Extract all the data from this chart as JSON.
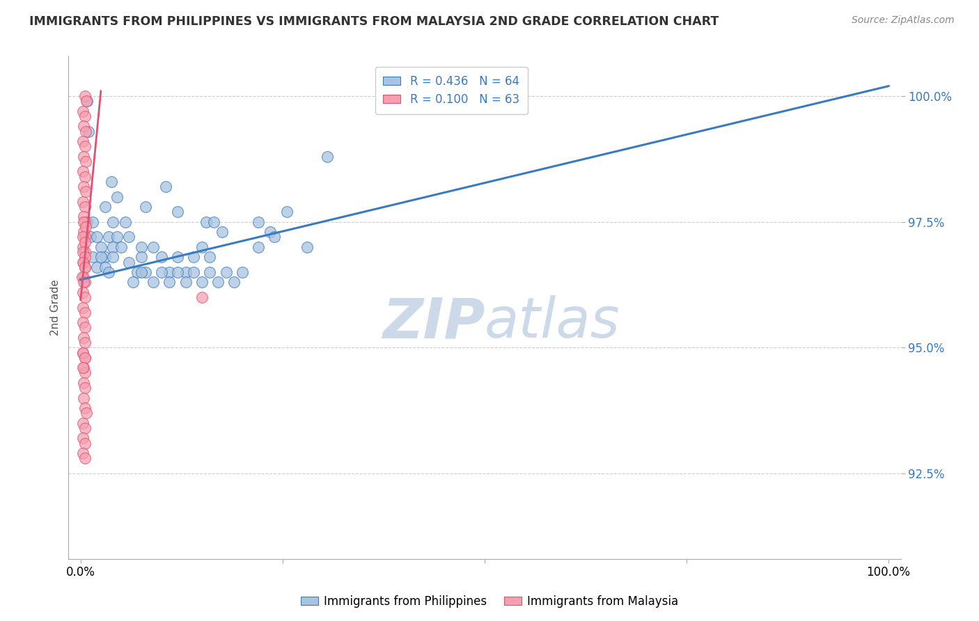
{
  "title": "IMMIGRANTS FROM PHILIPPINES VS IMMIGRANTS FROM MALAYSIA 2ND GRADE CORRELATION CHART",
  "source_text": "Source: ZipAtlas.com",
  "ylabel": "2nd Grade",
  "r_blue": 0.436,
  "n_blue": 64,
  "r_pink": 0.1,
  "n_pink": 63,
  "blue_color": "#a8c4e0",
  "pink_color": "#f4a0b0",
  "blue_line_color": "#3a7abf",
  "pink_line_color": "#e05070",
  "legend_text_color": "#3a7abf",
  "title_color": "#333333",
  "watermark_color": "#ccd9e8",
  "grid_color": "#cccccc",
  "xlim": [
    -0.015,
    1.015
  ],
  "ylim": [
    0.908,
    1.008
  ],
  "x_ticks": [
    0.0,
    0.25,
    0.5,
    0.75,
    1.0
  ],
  "x_tick_labels": [
    "0.0%",
    "",
    "",
    "",
    "100.0%"
  ],
  "y_ticks": [
    0.925,
    0.95,
    0.975,
    1.0
  ],
  "y_tick_labels": [
    "92.5%",
    "95.0%",
    "97.5%",
    "100.0%"
  ],
  "blue_trend_x": [
    0.0,
    1.0
  ],
  "blue_trend_y": [
    0.9635,
    1.002
  ],
  "pink_trend_x": [
    0.0,
    0.025
  ],
  "pink_trend_y": [
    0.9595,
    1.001
  ],
  "blue_scatter": [
    [
      0.008,
      0.999
    ],
    [
      0.01,
      0.993
    ],
    [
      0.038,
      0.983
    ],
    [
      0.045,
      0.98
    ],
    [
      0.105,
      0.982
    ],
    [
      0.12,
      0.977
    ],
    [
      0.155,
      0.975
    ],
    [
      0.165,
      0.975
    ],
    [
      0.175,
      0.973
    ],
    [
      0.22,
      0.975
    ],
    [
      0.235,
      0.973
    ],
    [
      0.255,
      0.977
    ],
    [
      0.305,
      0.988
    ],
    [
      0.03,
      0.978
    ],
    [
      0.04,
      0.975
    ],
    [
      0.06,
      0.972
    ],
    [
      0.075,
      0.97
    ],
    [
      0.055,
      0.975
    ],
    [
      0.08,
      0.978
    ],
    [
      0.008,
      0.975
    ],
    [
      0.012,
      0.972
    ],
    [
      0.015,
      0.975
    ],
    [
      0.02,
      0.972
    ],
    [
      0.025,
      0.97
    ],
    [
      0.03,
      0.968
    ],
    [
      0.035,
      0.972
    ],
    [
      0.04,
      0.97
    ],
    [
      0.015,
      0.968
    ],
    [
      0.02,
      0.966
    ],
    [
      0.025,
      0.968
    ],
    [
      0.03,
      0.966
    ],
    [
      0.035,
      0.965
    ],
    [
      0.04,
      0.968
    ],
    [
      0.045,
      0.972
    ],
    [
      0.05,
      0.97
    ],
    [
      0.06,
      0.967
    ],
    [
      0.07,
      0.965
    ],
    [
      0.075,
      0.968
    ],
    [
      0.08,
      0.965
    ],
    [
      0.09,
      0.97
    ],
    [
      0.1,
      0.968
    ],
    [
      0.11,
      0.965
    ],
    [
      0.12,
      0.968
    ],
    [
      0.13,
      0.965
    ],
    [
      0.14,
      0.968
    ],
    [
      0.065,
      0.963
    ],
    [
      0.075,
      0.965
    ],
    [
      0.09,
      0.963
    ],
    [
      0.1,
      0.965
    ],
    [
      0.11,
      0.963
    ],
    [
      0.12,
      0.965
    ],
    [
      0.13,
      0.963
    ],
    [
      0.14,
      0.965
    ],
    [
      0.15,
      0.963
    ],
    [
      0.16,
      0.965
    ],
    [
      0.17,
      0.963
    ],
    [
      0.18,
      0.965
    ],
    [
      0.19,
      0.963
    ],
    [
      0.2,
      0.965
    ],
    [
      0.15,
      0.97
    ],
    [
      0.16,
      0.968
    ],
    [
      0.22,
      0.97
    ],
    [
      0.24,
      0.972
    ],
    [
      0.28,
      0.97
    ]
  ],
  "pink_scatter": [
    [
      0.005,
      1.0
    ],
    [
      0.007,
      0.999
    ],
    [
      0.003,
      0.997
    ],
    [
      0.005,
      0.996
    ],
    [
      0.004,
      0.994
    ],
    [
      0.006,
      0.993
    ],
    [
      0.003,
      0.991
    ],
    [
      0.005,
      0.99
    ],
    [
      0.004,
      0.988
    ],
    [
      0.006,
      0.987
    ],
    [
      0.003,
      0.985
    ],
    [
      0.005,
      0.984
    ],
    [
      0.004,
      0.982
    ],
    [
      0.006,
      0.981
    ],
    [
      0.003,
      0.979
    ],
    [
      0.005,
      0.978
    ],
    [
      0.004,
      0.976
    ],
    [
      0.005,
      0.975
    ],
    [
      0.004,
      0.973
    ],
    [
      0.005,
      0.972
    ],
    [
      0.003,
      0.97
    ],
    [
      0.005,
      0.969
    ],
    [
      0.004,
      0.967
    ],
    [
      0.005,
      0.966
    ],
    [
      0.004,
      0.964
    ],
    [
      0.005,
      0.963
    ],
    [
      0.004,
      0.975
    ],
    [
      0.006,
      0.974
    ],
    [
      0.003,
      0.972
    ],
    [
      0.005,
      0.971
    ],
    [
      0.003,
      0.969
    ],
    [
      0.005,
      0.968
    ],
    [
      0.003,
      0.967
    ],
    [
      0.005,
      0.966
    ],
    [
      0.002,
      0.964
    ],
    [
      0.004,
      0.963
    ],
    [
      0.003,
      0.961
    ],
    [
      0.005,
      0.96
    ],
    [
      0.003,
      0.958
    ],
    [
      0.005,
      0.957
    ],
    [
      0.003,
      0.955
    ],
    [
      0.005,
      0.954
    ],
    [
      0.004,
      0.952
    ],
    [
      0.005,
      0.951
    ],
    [
      0.003,
      0.949
    ],
    [
      0.005,
      0.948
    ],
    [
      0.004,
      0.946
    ],
    [
      0.005,
      0.945
    ],
    [
      0.004,
      0.943
    ],
    [
      0.005,
      0.942
    ],
    [
      0.004,
      0.94
    ],
    [
      0.005,
      0.938
    ],
    [
      0.007,
      0.937
    ],
    [
      0.003,
      0.935
    ],
    [
      0.005,
      0.934
    ],
    [
      0.003,
      0.932
    ],
    [
      0.005,
      0.931
    ],
    [
      0.003,
      0.929
    ],
    [
      0.005,
      0.928
    ],
    [
      0.003,
      0.949
    ],
    [
      0.005,
      0.948
    ],
    [
      0.003,
      0.946
    ],
    [
      0.15,
      0.96
    ]
  ]
}
